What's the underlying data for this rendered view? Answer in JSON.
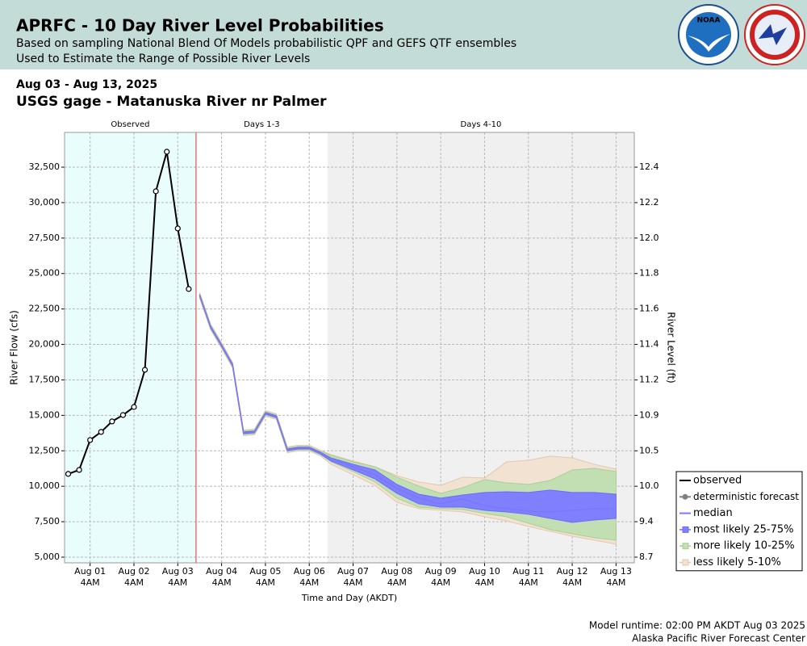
{
  "header": {
    "title": "APRFC - 10 Day River Level Probabilities",
    "subtitle": [
      "Based on sampling National Blend Of Models probabilistic QPF and GEFS QTF ensembles",
      "Used to Estimate the Range of Possible River Levels"
    ]
  },
  "date_range": "Aug 03 - Aug 13, 2025",
  "gage": "USGS gage - Matanuska River nr Palmer",
  "footer": [
    "Model runtime: 02:00 PM AKDT Aug 03 2025",
    "Alaska Pacific River Forecast Center"
  ],
  "chart_data": {
    "type": "probability-hydrograph",
    "xlabel": "Time and Day (AKDT)",
    "ylabel": "River Flow (cfs)",
    "y2label": "River Level (ft)",
    "xlim": [
      "2025-07-31T14:00",
      "2025-08-13T14:00"
    ],
    "xticks": [
      {
        "value": "2025-08-01T04:00",
        "label": "Aug 01",
        "sublabel": "4AM"
      },
      {
        "value": "2025-08-02T04:00",
        "label": "Aug 02",
        "sublabel": "4AM"
      },
      {
        "value": "2025-08-03T04:00",
        "label": "Aug 03",
        "sublabel": "4AM"
      },
      {
        "value": "2025-08-04T04:00",
        "label": "Aug 04",
        "sublabel": "4AM"
      },
      {
        "value": "2025-08-05T04:00",
        "label": "Aug 05",
        "sublabel": "4AM"
      },
      {
        "value": "2025-08-06T04:00",
        "label": "Aug 06",
        "sublabel": "4AM"
      },
      {
        "value": "2025-08-07T04:00",
        "label": "Aug 07",
        "sublabel": "4AM"
      },
      {
        "value": "2025-08-08T04:00",
        "label": "Aug 08",
        "sublabel": "4AM"
      },
      {
        "value": "2025-08-09T04:00",
        "label": "Aug 09",
        "sublabel": "4AM"
      },
      {
        "value": "2025-08-10T04:00",
        "label": "Aug 10",
        "sublabel": "4AM"
      },
      {
        "value": "2025-08-11T04:00",
        "label": "Aug 11",
        "sublabel": "4AM"
      },
      {
        "value": "2025-08-12T04:00",
        "label": "Aug 12",
        "sublabel": "4AM"
      },
      {
        "value": "2025-08-13T04:00",
        "label": "Aug 13",
        "sublabel": "4AM"
      }
    ],
    "ylim": [
      4600,
      34950
    ],
    "yticks": [
      {
        "value": 5000,
        "label": "5,000"
      },
      {
        "value": 7500,
        "label": "7,500"
      },
      {
        "value": 10000,
        "label": "10,000"
      },
      {
        "value": 12500,
        "label": "12,500"
      },
      {
        "value": 15000,
        "label": "15,000"
      },
      {
        "value": 17500,
        "label": "17,500"
      },
      {
        "value": 20000,
        "label": "20,000"
      },
      {
        "value": 22500,
        "label": "22,500"
      },
      {
        "value": 25000,
        "label": "25,000"
      },
      {
        "value": 27500,
        "label": "27,500"
      },
      {
        "value": 30000,
        "label": "30,000"
      },
      {
        "value": 32500,
        "label": "32,500"
      }
    ],
    "y2ticks": [
      8.7,
      9.4,
      {
        "value": 10,
        "label": "10.0"
      },
      10.5,
      10.9,
      11.2,
      11.4,
      11.6,
      11.8,
      {
        "value": 12,
        "label": "12.0"
      },
      12.2,
      12.4
    ],
    "grid": true,
    "regions": [
      {
        "label": "Observed",
        "start": "2025-07-31T14:00",
        "end": "2025-08-03T14:00",
        "color": "#e9fdfd"
      },
      {
        "label": "Days 1-3",
        "start": "2025-08-03T14:00",
        "end": "2025-08-06T14:00",
        "color": "#ffffff"
      },
      {
        "label": "Days 4-10",
        "start": "2025-08-06T14:00",
        "end": "2025-08-13T14:00",
        "color": "#f0f0f0"
      }
    ],
    "runtime_color": "#e03030",
    "legend": "lower right",
    "forecast_x": [
      "2025-08-03T16:00",
      "2025-08-03T22:00",
      "2025-08-04T04:00",
      "2025-08-04T10:00",
      "2025-08-04T16:00",
      "2025-08-04T22:00",
      "2025-08-05T04:00",
      "2025-08-05T10:00",
      "2025-08-05T16:00",
      "2025-08-05T22:00",
      "2025-08-06T04:00",
      "2025-08-06T10:00",
      "2025-08-06T16:00",
      "2025-08-07T04:00",
      "2025-08-07T16:00",
      "2025-08-08T04:00",
      "2025-08-08T16:00",
      "2025-08-09T04:00",
      "2025-08-09T16:00",
      "2025-08-10T04:00",
      "2025-08-10T16:00",
      "2025-08-11T04:00",
      "2025-08-11T16:00",
      "2025-08-12T04:00",
      "2025-08-12T16:00",
      "2025-08-13T04:00"
    ],
    "series": [
      {
        "name": "observed",
        "color": "#000000",
        "markers": true,
        "x": [
          "2025-07-31T16:00",
          "2025-07-31T22:00",
          "2025-08-01T04:00",
          "2025-08-01T10:00",
          "2025-08-01T16:00",
          "2025-08-01T22:00",
          "2025-08-02T04:00",
          "2025-08-02T10:00",
          "2025-08-02T16:00",
          "2025-08-02T22:00",
          "2025-08-03T04:00",
          "2025-08-03T10:00"
        ],
        "values": [
          10870,
          11150,
          13260,
          13830,
          14570,
          15020,
          15590,
          18210,
          30800,
          33590,
          28180,
          23910
        ]
      },
      {
        "name": "deterministic forecast",
        "color": "#808080",
        "markers": false,
        "values": [
          23450,
          21230,
          19920,
          18550,
          13770,
          13830,
          15140,
          14910,
          12570,
          12690,
          12690,
          12350,
          11950,
          null,
          null,
          null,
          null,
          null,
          null,
          null,
          null,
          null,
          null,
          null,
          null,
          null
        ]
      },
      {
        "name": "median",
        "color": "#7878ff",
        "markers": false,
        "values": [
          23450,
          21230,
          19920,
          18550,
          13770,
          13830,
          15140,
          14910,
          12570,
          12690,
          12690,
          12350,
          11950,
          11380,
          10810,
          9840,
          9160,
          8760,
          9100,
          8640,
          8420,
          8250,
          8190,
          8300,
          8420,
          8420
        ]
      }
    ],
    "bands": [
      {
        "name": "most likely 25-75%",
        "color": "#8080ff",
        "edge": "#6a6aff",
        "lower": [
          23390,
          21170,
          19860,
          18490,
          13710,
          13770,
          15080,
          14850,
          12510,
          12630,
          12630,
          12290,
          11780,
          11150,
          10520,
          9500,
          8760,
          8530,
          8530,
          8300,
          8190,
          8020,
          7730,
          7450,
          7620,
          7730
        ],
        "upper": [
          23510,
          21290,
          19980,
          18610,
          13830,
          13890,
          15200,
          14970,
          12630,
          12750,
          12750,
          12410,
          12000,
          11550,
          11150,
          10130,
          9440,
          9160,
          9380,
          9560,
          9610,
          9560,
          9730,
          9560,
          9560,
          9440
        ]
      },
      {
        "name": "more likely 10-25%",
        "color": "#c2dfb4",
        "edge": "#a8cf98",
        "lower": [
          23330,
          21110,
          19800,
          18430,
          13650,
          13710,
          15020,
          14790,
          12450,
          12570,
          12570,
          12230,
          11720,
          11040,
          10300,
          9160,
          8530,
          8420,
          8360,
          8080,
          7850,
          7390,
          6940,
          6650,
          6370,
          6200
        ],
        "upper": [
          23570,
          21350,
          20040,
          18670,
          13890,
          13950,
          15260,
          15030,
          12690,
          12810,
          12810,
          12470,
          12180,
          11720,
          11380,
          10640,
          10010,
          9500,
          9900,
          10470,
          10240,
          10130,
          10410,
          11150,
          11260,
          11040
        ]
      },
      {
        "name": "less likely 5-10%",
        "color": "#f1e2d2",
        "edge": "#e3c8ae",
        "lower": [
          23250,
          21030,
          19720,
          18350,
          13570,
          13630,
          14940,
          14710,
          12370,
          12490,
          12490,
          12150,
          11550,
          10810,
          10070,
          8870,
          8420,
          8300,
          8190,
          7850,
          7560,
          7160,
          6820,
          6480,
          6200,
          5910
        ],
        "upper": [
          23650,
          21430,
          20120,
          18750,
          13970,
          14030,
          15340,
          15110,
          12770,
          12890,
          12890,
          12550,
          12230,
          11780,
          11380,
          10750,
          10300,
          10070,
          10640,
          10580,
          11720,
          11830,
          12120,
          12000,
          11550,
          11210
        ]
      }
    ]
  }
}
